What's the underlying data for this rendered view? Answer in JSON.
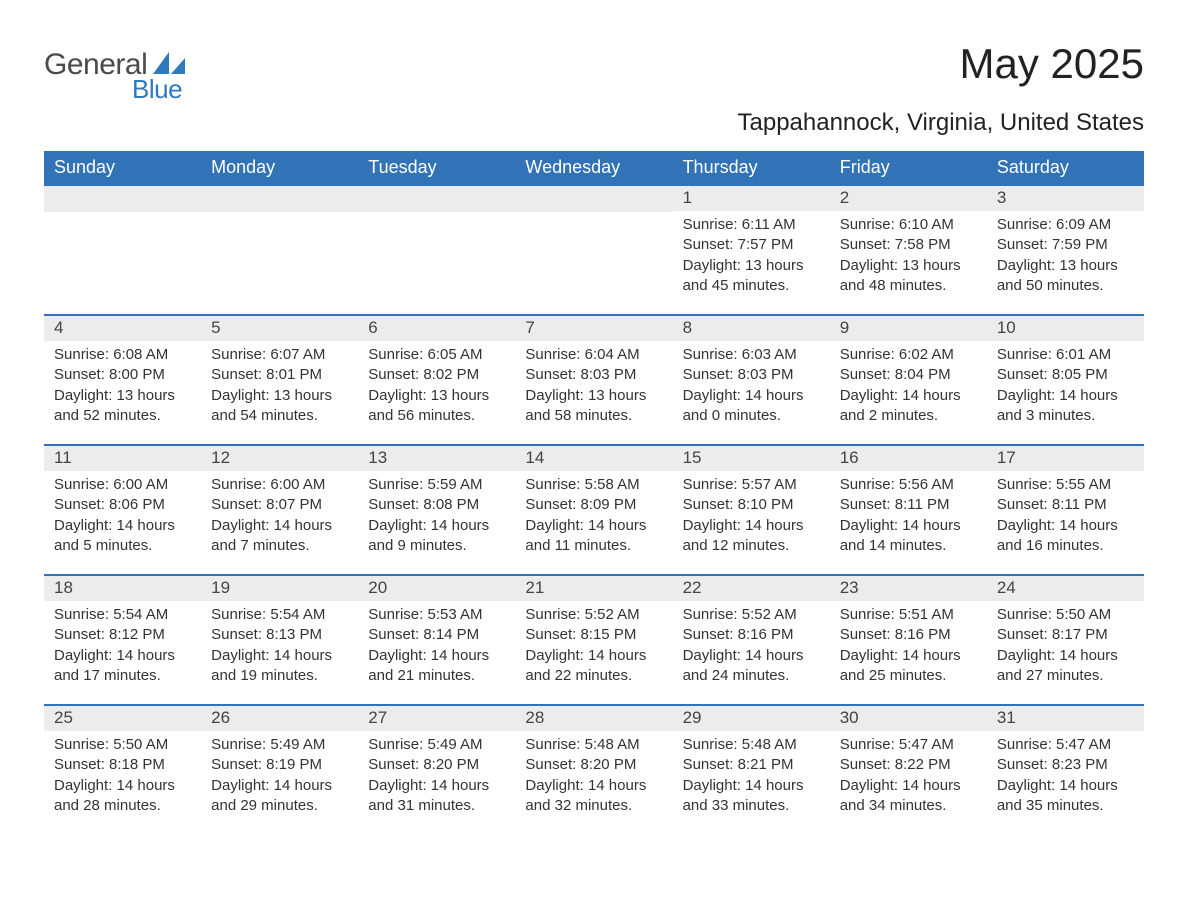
{
  "logo": {
    "part1": "General",
    "part2": "Blue",
    "sail_color": "#2f79bd",
    "text_color": "#4a4a4a"
  },
  "title": "May 2025",
  "subtitle": "Tappahannock, Virginia, United States",
  "colors": {
    "header_bg": "#3173b6",
    "header_text": "#ffffff",
    "daynum_bg": "#ececec",
    "row_border": "#3173b6",
    "body_text": "#333333",
    "background": "#ffffff"
  },
  "weekdays": [
    "Sunday",
    "Monday",
    "Tuesday",
    "Wednesday",
    "Thursday",
    "Friday",
    "Saturday"
  ],
  "weeks": [
    [
      null,
      null,
      null,
      null,
      {
        "n": "1",
        "sunrise": "6:11 AM",
        "sunset": "7:57 PM",
        "daylight": "13 hours and 45 minutes."
      },
      {
        "n": "2",
        "sunrise": "6:10 AM",
        "sunset": "7:58 PM",
        "daylight": "13 hours and 48 minutes."
      },
      {
        "n": "3",
        "sunrise": "6:09 AM",
        "sunset": "7:59 PM",
        "daylight": "13 hours and 50 minutes."
      }
    ],
    [
      {
        "n": "4",
        "sunrise": "6:08 AM",
        "sunset": "8:00 PM",
        "daylight": "13 hours and 52 minutes."
      },
      {
        "n": "5",
        "sunrise": "6:07 AM",
        "sunset": "8:01 PM",
        "daylight": "13 hours and 54 minutes."
      },
      {
        "n": "6",
        "sunrise": "6:05 AM",
        "sunset": "8:02 PM",
        "daylight": "13 hours and 56 minutes."
      },
      {
        "n": "7",
        "sunrise": "6:04 AM",
        "sunset": "8:03 PM",
        "daylight": "13 hours and 58 minutes."
      },
      {
        "n": "8",
        "sunrise": "6:03 AM",
        "sunset": "8:03 PM",
        "daylight": "14 hours and 0 minutes."
      },
      {
        "n": "9",
        "sunrise": "6:02 AM",
        "sunset": "8:04 PM",
        "daylight": "14 hours and 2 minutes."
      },
      {
        "n": "10",
        "sunrise": "6:01 AM",
        "sunset": "8:05 PM",
        "daylight": "14 hours and 3 minutes."
      }
    ],
    [
      {
        "n": "11",
        "sunrise": "6:00 AM",
        "sunset": "8:06 PM",
        "daylight": "14 hours and 5 minutes."
      },
      {
        "n": "12",
        "sunrise": "6:00 AM",
        "sunset": "8:07 PM",
        "daylight": "14 hours and 7 minutes."
      },
      {
        "n": "13",
        "sunrise": "5:59 AM",
        "sunset": "8:08 PM",
        "daylight": "14 hours and 9 minutes."
      },
      {
        "n": "14",
        "sunrise": "5:58 AM",
        "sunset": "8:09 PM",
        "daylight": "14 hours and 11 minutes."
      },
      {
        "n": "15",
        "sunrise": "5:57 AM",
        "sunset": "8:10 PM",
        "daylight": "14 hours and 12 minutes."
      },
      {
        "n": "16",
        "sunrise": "5:56 AM",
        "sunset": "8:11 PM",
        "daylight": "14 hours and 14 minutes."
      },
      {
        "n": "17",
        "sunrise": "5:55 AM",
        "sunset": "8:11 PM",
        "daylight": "14 hours and 16 minutes."
      }
    ],
    [
      {
        "n": "18",
        "sunrise": "5:54 AM",
        "sunset": "8:12 PM",
        "daylight": "14 hours and 17 minutes."
      },
      {
        "n": "19",
        "sunrise": "5:54 AM",
        "sunset": "8:13 PM",
        "daylight": "14 hours and 19 minutes."
      },
      {
        "n": "20",
        "sunrise": "5:53 AM",
        "sunset": "8:14 PM",
        "daylight": "14 hours and 21 minutes."
      },
      {
        "n": "21",
        "sunrise": "5:52 AM",
        "sunset": "8:15 PM",
        "daylight": "14 hours and 22 minutes."
      },
      {
        "n": "22",
        "sunrise": "5:52 AM",
        "sunset": "8:16 PM",
        "daylight": "14 hours and 24 minutes."
      },
      {
        "n": "23",
        "sunrise": "5:51 AM",
        "sunset": "8:16 PM",
        "daylight": "14 hours and 25 minutes."
      },
      {
        "n": "24",
        "sunrise": "5:50 AM",
        "sunset": "8:17 PM",
        "daylight": "14 hours and 27 minutes."
      }
    ],
    [
      {
        "n": "25",
        "sunrise": "5:50 AM",
        "sunset": "8:18 PM",
        "daylight": "14 hours and 28 minutes."
      },
      {
        "n": "26",
        "sunrise": "5:49 AM",
        "sunset": "8:19 PM",
        "daylight": "14 hours and 29 minutes."
      },
      {
        "n": "27",
        "sunrise": "5:49 AM",
        "sunset": "8:20 PM",
        "daylight": "14 hours and 31 minutes."
      },
      {
        "n": "28",
        "sunrise": "5:48 AM",
        "sunset": "8:20 PM",
        "daylight": "14 hours and 32 minutes."
      },
      {
        "n": "29",
        "sunrise": "5:48 AM",
        "sunset": "8:21 PM",
        "daylight": "14 hours and 33 minutes."
      },
      {
        "n": "30",
        "sunrise": "5:47 AM",
        "sunset": "8:22 PM",
        "daylight": "14 hours and 34 minutes."
      },
      {
        "n": "31",
        "sunrise": "5:47 AM",
        "sunset": "8:23 PM",
        "daylight": "14 hours and 35 minutes."
      }
    ]
  ],
  "labels": {
    "sunrise_prefix": "Sunrise: ",
    "sunset_prefix": "Sunset: ",
    "daylight_prefix": "Daylight: "
  }
}
